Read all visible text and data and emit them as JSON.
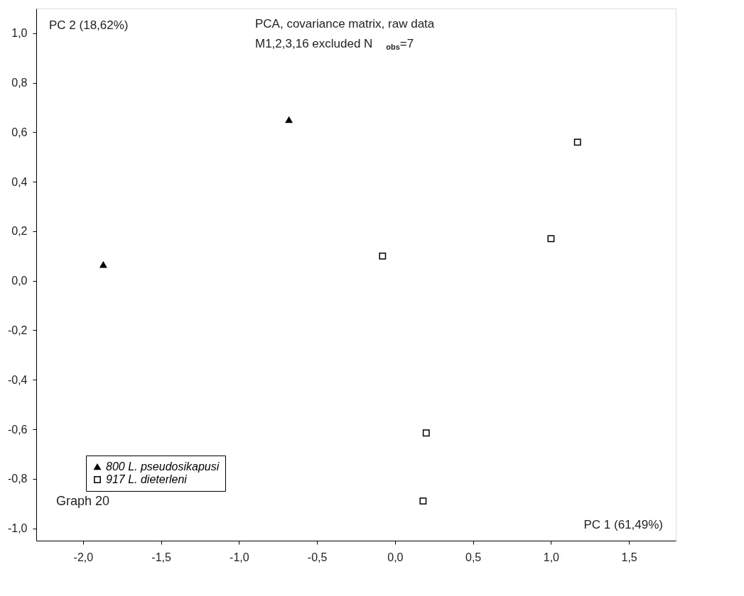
{
  "chart_data": {
    "type": "scatter",
    "xlabel": "PC 1 (61,49%)",
    "ylabel": "PC 2 (18,62%)",
    "annotations": [
      "PCA, covariance matrix, raw data",
      "M1,2,3,16 excluded     N$_{obs}$=7",
      "Graph 20"
    ],
    "xlim": [
      -2.3,
      1.8
    ],
    "ylim": [
      -1.05,
      1.1
    ],
    "xticks": [
      {
        "value": -2.0,
        "label": "-2,0"
      },
      {
        "value": -1.5,
        "label": "-1,5"
      },
      {
        "value": -1.0,
        "label": "-1,0"
      },
      {
        "value": -0.5,
        "label": "-0,5"
      },
      {
        "value": 0.0,
        "label": "0,0"
      },
      {
        "value": 0.5,
        "label": "0,5"
      },
      {
        "value": 1.0,
        "label": "1,0"
      },
      {
        "value": 1.5,
        "label": "1,5"
      }
    ],
    "yticks": [
      {
        "value": -1.0,
        "label": "-1,0"
      },
      {
        "value": -0.8,
        "label": "-0,8"
      },
      {
        "value": -0.6,
        "label": "-0,6"
      },
      {
        "value": -0.4,
        "label": "-0,4"
      },
      {
        "value": -0.2,
        "label": "-0,2"
      },
      {
        "value": 0.0,
        "label": "0,0"
      },
      {
        "value": 0.2,
        "label": "0,2"
      },
      {
        "value": 0.4,
        "label": "0,4"
      },
      {
        "value": 0.6,
        "label": "0,6"
      },
      {
        "value": 0.8,
        "label": "0,8"
      },
      {
        "value": 1.0,
        "label": "1,0"
      }
    ],
    "grid": false,
    "legend": "bottom left",
    "series": [
      {
        "name": "800 L. pseudosikapusi",
        "color": "#000000",
        "marker": "triangle",
        "x": [
          -1.87,
          -0.68
        ],
        "values": [
          0.065,
          0.65
        ]
      },
      {
        "name": "917 L. dieterleni",
        "color": "#000000",
        "marker": "square",
        "x": [
          -0.08,
          1.0,
          1.17,
          0.2,
          0.18
        ],
        "values": [
          0.1,
          0.17,
          0.56,
          -0.615,
          -0.89
        ]
      }
    ]
  }
}
